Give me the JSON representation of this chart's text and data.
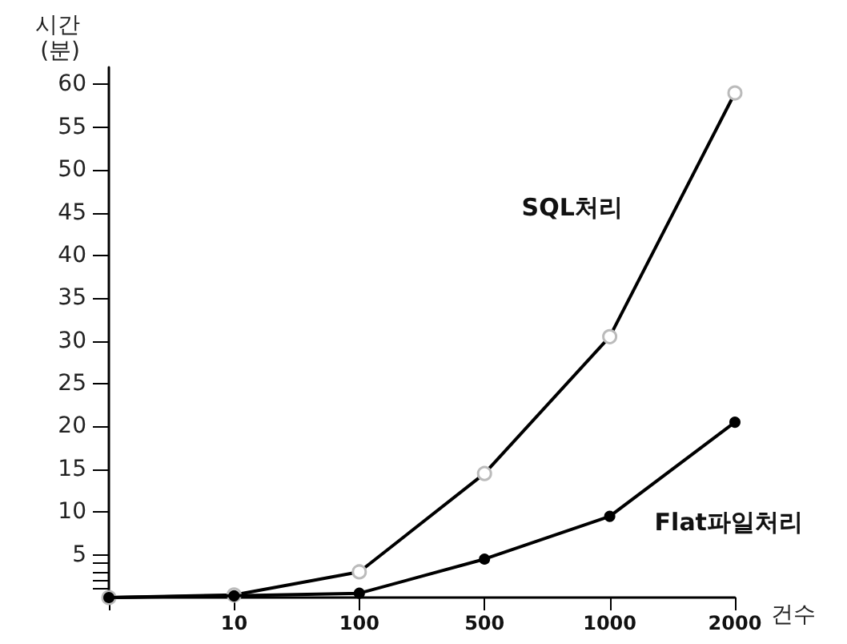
{
  "chart_data": {
    "type": "line",
    "xlabel": "건수",
    "ylabel": "시간\n(분)",
    "categories": [
      null,
      "10",
      "100",
      "500",
      "1000",
      "2000"
    ],
    "series": [
      {
        "name": "SQL처리",
        "color": "#000000",
        "marker": "circle",
        "values": [
          0,
          0.3,
          3,
          14.5,
          30.5,
          59
        ]
      },
      {
        "name": "Flat파일처리",
        "color": "#000000",
        "marker": "circle",
        "values": [
          0,
          0.2,
          0.5,
          4.5,
          9.5,
          20.5
        ]
      }
    ],
    "ylim": [
      0,
      62
    ],
    "yticks": [
      {
        "value": 1,
        "label": null
      },
      {
        "value": 2,
        "label": null
      },
      {
        "value": 3,
        "label": null
      },
      {
        "value": 4,
        "label": null
      },
      5,
      10,
      15,
      20,
      25,
      30,
      35,
      40,
      45,
      50,
      55,
      60
    ],
    "grid": false,
    "legend": false,
    "line_style": "solid"
  }
}
